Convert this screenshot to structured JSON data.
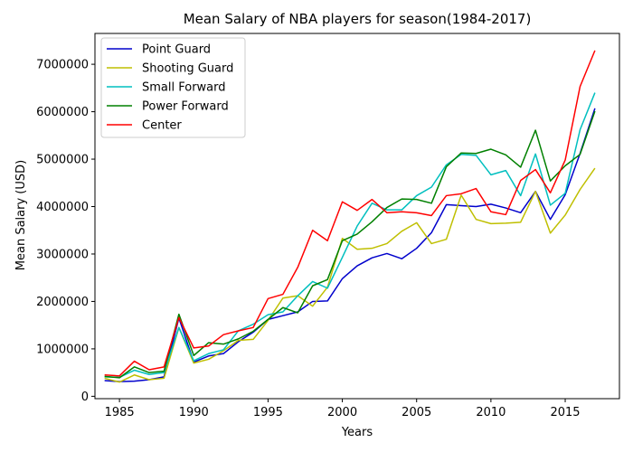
{
  "chart_data": {
    "type": "line",
    "title": "Mean Salary of NBA players for season(1984-2017)",
    "xlabel": "Years",
    "ylabel": "Mean Salary (USD)",
    "xlim": [
      1983.35,
      2018.65
    ],
    "ylim": [
      -50000,
      7650000
    ],
    "x_ticks": [
      1985,
      1990,
      1995,
      2000,
      2005,
      2010,
      2015
    ],
    "y_ticks": [
      0,
      1000000,
      2000000,
      3000000,
      4000000,
      5000000,
      6000000,
      7000000
    ],
    "grid": false,
    "legend_position": "top-left",
    "x": [
      1984,
      1985,
      1986,
      1987,
      1988,
      1989,
      1990,
      1991,
      1992,
      1993,
      1994,
      1995,
      1996,
      1997,
      1998,
      1999,
      2000,
      2001,
      2002,
      2003,
      2004,
      2005,
      2006,
      2007,
      2008,
      2009,
      2010,
      2011,
      2012,
      2013,
      2014,
      2015,
      2016,
      2017
    ],
    "series": [
      {
        "name": "Point Guard",
        "color": "#0000cc",
        "values": [
          330000,
          310000,
          320000,
          350000,
          410000,
          1650000,
          720000,
          850000,
          900000,
          1150000,
          1350000,
          1620000,
          1700000,
          1780000,
          2000000,
          2010000,
          2480000,
          2750000,
          2920000,
          3010000,
          2900000,
          3120000,
          3450000,
          4040000,
          4020000,
          4000000,
          4050000,
          3970000,
          3870000,
          4320000,
          3730000,
          4250000,
          5120000,
          6070000
        ]
      },
      {
        "name": "Shooting Guard",
        "color": "#bfbf00",
        "values": [
          380000,
          300000,
          450000,
          350000,
          380000,
          1450000,
          700000,
          780000,
          960000,
          1180000,
          1200000,
          1600000,
          2070000,
          2120000,
          1900000,
          2300000,
          3330000,
          3100000,
          3120000,
          3220000,
          3480000,
          3660000,
          3220000,
          3310000,
          4240000,
          3730000,
          3640000,
          3650000,
          3670000,
          4320000,
          3440000,
          3820000,
          4360000,
          4810000
        ]
      },
      {
        "name": "Small Forward",
        "color": "#00bfbf",
        "values": [
          410000,
          400000,
          550000,
          460000,
          500000,
          1450000,
          750000,
          900000,
          980000,
          1380000,
          1520000,
          1720000,
          1780000,
          2120000,
          2420000,
          2280000,
          2930000,
          3590000,
          4070000,
          3930000,
          3930000,
          4230000,
          4410000,
          4880000,
          5100000,
          5080000,
          4670000,
          4760000,
          4230000,
          5110000,
          4030000,
          4280000,
          5620000,
          6400000
        ]
      },
      {
        "name": "Power Forward",
        "color": "#008000",
        "values": [
          420000,
          390000,
          620000,
          500000,
          530000,
          1730000,
          860000,
          1130000,
          1100000,
          1210000,
          1370000,
          1620000,
          1870000,
          1760000,
          2330000,
          2460000,
          3280000,
          3420000,
          3680000,
          3980000,
          4160000,
          4150000,
          4070000,
          4840000,
          5130000,
          5120000,
          5210000,
          5090000,
          4830000,
          5610000,
          4540000,
          4860000,
          5100000,
          6010000
        ]
      },
      {
        "name": "Center",
        "color": "#ff0000",
        "values": [
          450000,
          430000,
          740000,
          560000,
          620000,
          1660000,
          1020000,
          1060000,
          1300000,
          1380000,
          1450000,
          2060000,
          2150000,
          2720000,
          3500000,
          3280000,
          4100000,
          3920000,
          4150000,
          3870000,
          3890000,
          3870000,
          3810000,
          4230000,
          4270000,
          4380000,
          3890000,
          3830000,
          4550000,
          4780000,
          4290000,
          4980000,
          6530000,
          7290000
        ]
      }
    ]
  }
}
